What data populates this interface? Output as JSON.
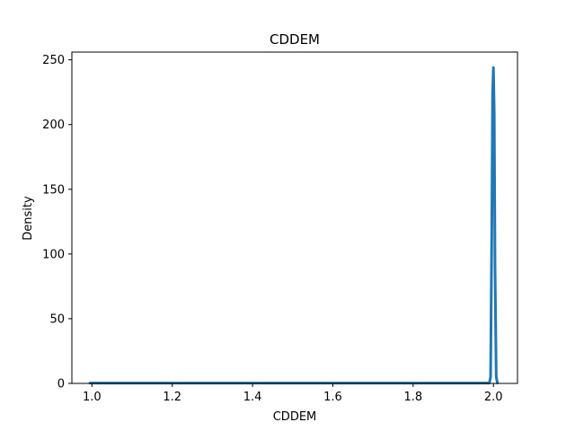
{
  "chart_data": {
    "type": "line",
    "title": "CDDEM",
    "xlabel": "CDDEM",
    "ylabel": "Density",
    "xlim": [
      0.95,
      2.06
    ],
    "ylim": [
      0,
      256
    ],
    "x_ticks": [
      1.0,
      1.2,
      1.4,
      1.6,
      1.8,
      2.0
    ],
    "x_tick_labels": [
      "1.0",
      "1.2",
      "1.4",
      "1.6",
      "1.8",
      "2.0"
    ],
    "y_ticks": [
      0,
      50,
      100,
      150,
      200,
      250
    ],
    "y_tick_labels": [
      "0",
      "50",
      "100",
      "150",
      "200",
      "250"
    ],
    "grid": false,
    "series": [
      {
        "color": "#1f77b4",
        "x": [
          0.995,
          1.2,
          1.4,
          1.6,
          1.8,
          1.99,
          1.993,
          1.996,
          1.998,
          2.0,
          2.002,
          2.004,
          2.007,
          2.01
        ],
        "y": [
          0.3,
          0.3,
          0.3,
          0.3,
          0.3,
          0.3,
          5,
          120,
          225,
          244,
          210,
          90,
          5,
          0.3
        ]
      }
    ]
  }
}
